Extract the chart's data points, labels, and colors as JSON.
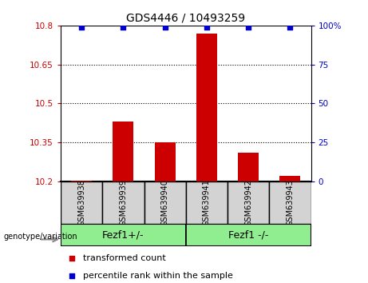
{
  "title": "GDS4446 / 10493259",
  "samples": [
    "GSM639938",
    "GSM639939",
    "GSM639940",
    "GSM639941",
    "GSM639942",
    "GSM639943"
  ],
  "transformed_count": [
    10.202,
    10.43,
    10.35,
    10.77,
    10.31,
    10.22
  ],
  "percentile_rank": [
    99,
    99,
    99,
    99,
    99,
    99
  ],
  "ylim_left": [
    10.2,
    10.8
  ],
  "ylim_right": [
    0,
    100
  ],
  "yticks_left": [
    10.2,
    10.35,
    10.5,
    10.65,
    10.8
  ],
  "yticks_right": [
    0,
    25,
    50,
    75,
    100
  ],
  "ytick_labels_left": [
    "10.2",
    "10.35",
    "10.5",
    "10.65",
    "10.8"
  ],
  "ytick_labels_right": [
    "0",
    "25",
    "50",
    "75",
    "100%"
  ],
  "groups": [
    {
      "label": "Fezf1+/-",
      "indices": [
        0,
        1,
        2
      ],
      "color": "#90ee90"
    },
    {
      "label": "Fezf1 -/-",
      "indices": [
        3,
        4,
        5
      ],
      "color": "#90ee90"
    }
  ],
  "group_label_prefix": "genotype/variation",
  "bar_color": "#cc0000",
  "scatter_color": "#0000cc",
  "bar_width": 0.5,
  "tick_area_color": "#d3d3d3",
  "grid_color": "#000000"
}
